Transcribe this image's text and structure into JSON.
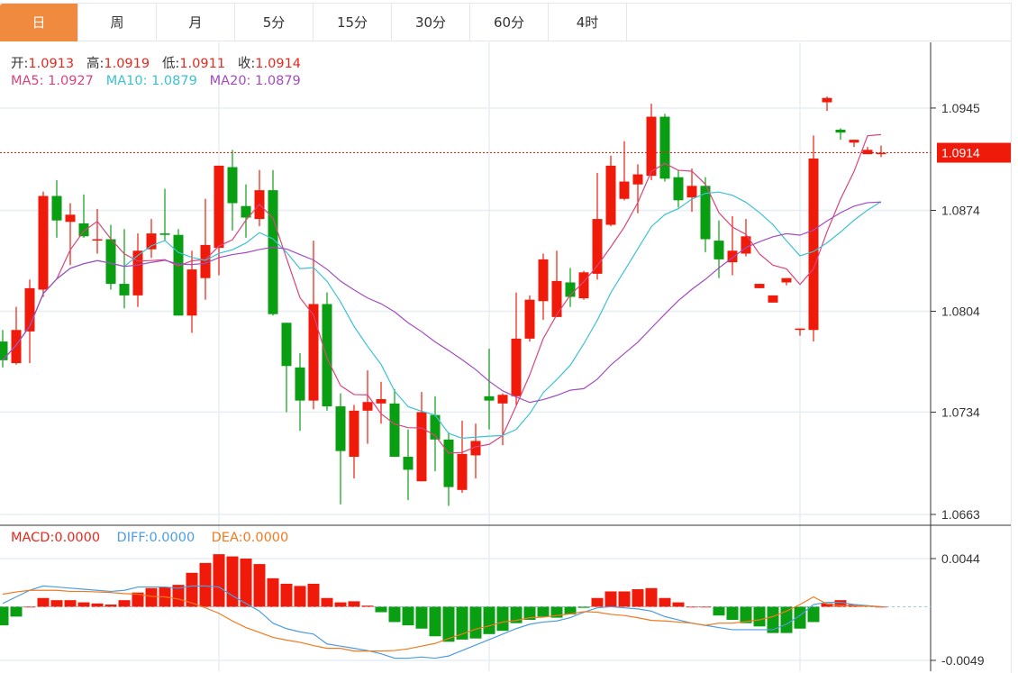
{
  "tabs": [
    {
      "label": "日",
      "active": true
    },
    {
      "label": "周",
      "active": false
    },
    {
      "label": "月",
      "active": false
    },
    {
      "label": "5分",
      "active": false
    },
    {
      "label": "15分",
      "active": false
    },
    {
      "label": "30分",
      "active": false
    },
    {
      "label": "60分",
      "active": false
    },
    {
      "label": "4时",
      "active": false
    }
  ],
  "legend": {
    "open_label": "开:",
    "open": "1.0913",
    "high_label": "高:",
    "high": "1.0919",
    "low_label": "低:",
    "low": "1.0911",
    "close_label": "收:",
    "close": "1.0914",
    "ma5": "MA5: 1.0927",
    "ma10": "MA10: 1.0879",
    "ma20": "MA20: 1.0879",
    "macd_label": "MACD:",
    "macd": "0.0000",
    "diff_label": "DIFF:",
    "diff": "0.0000",
    "dea_label": "DEA:",
    "dea": "0.0000"
  },
  "colors": {
    "up": "#f01a0a",
    "down": "#0a9e12",
    "ma5": "#d8457c",
    "ma10": "#3cc2d2",
    "ma20": "#a24cc0",
    "diff": "#4d9de0",
    "dea": "#f07a1e",
    "grid": "#e6edf3"
  },
  "chart_data": {
    "type": "candlestick",
    "title": "",
    "price_axis": {
      "range": [
        1.06555,
        1.09906
      ],
      "ticks": [
        "1.0945",
        "1.0874",
        "1.0804",
        "1.0734",
        "1.0663"
      ]
    },
    "last_price": "1.0914",
    "candles": [
      [
        1.0783,
        1.0791,
        1.0765,
        1.077
      ],
      [
        1.0768,
        1.0807,
        1.0767,
        1.0791
      ],
      [
        1.079,
        1.0826,
        1.0768,
        1.082
      ],
      [
        1.0819,
        1.0887,
        1.0814,
        1.0884
      ],
      [
        1.0884,
        1.0895,
        1.0855,
        1.0867
      ],
      [
        1.0866,
        1.0879,
        1.0836,
        1.0871
      ],
      [
        1.0865,
        1.0885,
        1.0855,
        1.0856
      ],
      [
        1.0854,
        1.0875,
        1.0844,
        1.0854
      ],
      [
        1.0854,
        1.0864,
        1.0819,
        1.0823
      ],
      [
        1.0823,
        1.0861,
        1.0806,
        1.0815
      ],
      [
        1.0815,
        1.0858,
        1.0807,
        1.0846
      ],
      [
        1.0847,
        1.0868,
        1.0841,
        1.0858
      ],
      [
        1.0858,
        1.0889,
        1.0853,
        1.0857
      ],
      [
        1.0857,
        1.0861,
        1.0801,
        1.0801
      ],
      [
        1.0801,
        1.0846,
        1.0789,
        1.0833
      ],
      [
        1.0827,
        1.0882,
        1.0812,
        1.085
      ],
      [
        1.0848,
        1.0905,
        1.0829,
        1.0905
      ],
      [
        1.0904,
        1.0916,
        1.086,
        1.0879
      ],
      [
        1.0877,
        1.0892,
        1.0855,
        1.0869
      ],
      [
        1.0868,
        1.0902,
        1.0863,
        1.0888
      ],
      [
        1.0888,
        1.0902,
        1.0801,
        1.0802
      ],
      [
        1.0796,
        1.0796,
        1.0734,
        1.0766
      ],
      [
        1.0765,
        1.0775,
        1.0721,
        1.0742
      ],
      [
        1.0742,
        1.0853,
        1.0736,
        1.0809
      ],
      [
        1.0809,
        1.0817,
        1.0735,
        1.0738
      ],
      [
        1.0738,
        1.0747,
        1.067,
        1.0707
      ],
      [
        1.0703,
        1.0739,
        1.0688,
        1.0735
      ],
      [
        1.0735,
        1.0763,
        1.0712,
        1.0741
      ],
      [
        1.074,
        1.0755,
        1.0726,
        1.0743
      ],
      [
        1.074,
        1.075,
        1.0703,
        1.0703
      ],
      [
        1.0703,
        1.0722,
        1.0673,
        1.0694
      ],
      [
        1.0686,
        1.0748,
        1.0686,
        1.0734
      ],
      [
        1.0732,
        1.0745,
        1.0693,
        1.0715
      ],
      [
        1.0715,
        1.072,
        1.0669,
        1.0682
      ],
      [
        1.068,
        1.0728,
        1.0678,
        1.0705
      ],
      [
        1.0704,
        1.0726,
        1.0688,
        1.0714
      ],
      [
        1.0745,
        1.0778,
        1.0722,
        1.0742
      ],
      [
        1.074,
        1.0747,
        1.0711,
        1.0746
      ],
      [
        1.0745,
        1.0817,
        1.0739,
        1.0785
      ],
      [
        1.0785,
        1.0815,
        1.0783,
        1.0812
      ],
      [
        1.0811,
        1.0844,
        1.0798,
        1.084
      ],
      [
        1.08,
        1.0846,
        1.08,
        1.0825
      ],
      [
        1.0824,
        1.0834,
        1.0807,
        1.0814
      ],
      [
        1.0813,
        1.0832,
        1.0812,
        1.0831
      ],
      [
        1.083,
        1.09,
        1.0826,
        1.0868
      ],
      [
        1.0864,
        1.0912,
        1.0863,
        1.0905
      ],
      [
        1.0882,
        1.0922,
        1.0881,
        1.0894
      ],
      [
        1.0892,
        1.0906,
        1.0872,
        1.0899
      ],
      [
        1.0898,
        1.0948,
        1.0895,
        1.0939
      ],
      [
        1.0939,
        1.0941,
        1.0894,
        1.0896
      ],
      [
        1.0897,
        1.0902,
        1.0876,
        1.0881
      ],
      [
        1.0883,
        1.0903,
        1.0873,
        1.0891
      ],
      [
        1.0891,
        1.0897,
        1.0845,
        1.0854
      ],
      [
        1.0853,
        1.0867,
        1.0827,
        1.084
      ],
      [
        1.0838,
        1.087,
        1.0829,
        1.0846
      ],
      [
        1.0844,
        1.0868,
        1.0842,
        1.0856
      ],
      [
        1.082,
        1.0823,
        1.082,
        1.0823
      ],
      [
        1.081,
        1.0815,
        1.081,
        1.0815
      ],
      [
        1.0824,
        1.0827,
        1.0822,
        1.0827
      ],
      [
        1.0791,
        1.0792,
        1.0787,
        1.0792
      ],
      [
        1.0791,
        1.0926,
        1.0783,
        1.091
      ],
      [
        1.0949,
        1.0953,
        1.0943,
        1.0952
      ],
      [
        1.093,
        1.0931,
        1.0923,
        1.0928
      ],
      [
        1.0921,
        1.0923,
        1.0918,
        1.0923
      ],
      [
        1.0913,
        1.0918,
        1.0913,
        1.0916
      ],
      [
        1.0913,
        1.0919,
        1.0911,
        1.0914
      ]
    ],
    "candle_fields": [
      "open",
      "high",
      "low",
      "close"
    ],
    "ma_periods": [
      5,
      10,
      20
    ],
    "macd_axis": {
      "range": [
        -0.00589,
        0.00687
      ],
      "ticks": [
        "0.0044",
        "-0.0049"
      ]
    },
    "macd_hist": [
      -0.0017,
      -0.0009,
      0.0,
      0.0008,
      0.0006,
      0.0006,
      0.0004,
      0.0003,
      0.0002,
      0.0006,
      0.0013,
      0.0017,
      0.0018,
      0.002,
      0.0031,
      0.004,
      0.0048,
      0.0046,
      0.0044,
      0.0039,
      0.0026,
      0.0021,
      0.0019,
      0.0021,
      0.0008,
      0.0004,
      0.0005,
      0.0001,
      -0.0005,
      -0.0014,
      -0.0017,
      -0.002,
      -0.0027,
      -0.0032,
      -0.003,
      -0.0029,
      -0.0025,
      -0.0022,
      -0.0015,
      -0.0012,
      -0.0009,
      -0.001,
      -0.0007,
      -0.0001,
      0.0008,
      0.0014,
      0.0014,
      0.0016,
      0.0017,
      0.0008,
      0.0004,
      0.0,
      0.0,
      -0.0008,
      -0.0012,
      -0.0015,
      -0.0018,
      -0.0024,
      -0.0024,
      -0.002,
      -0.0014,
      0.0003,
      0.0006,
      0.0002,
      0.0001,
      0.0
    ],
    "diff": [
      0.0003,
      0.0009,
      0.0015,
      0.0019,
      0.0018,
      0.0017,
      0.0016,
      0.0015,
      0.0014,
      0.0015,
      0.0018,
      0.0018,
      0.0018,
      0.0017,
      0.0019,
      0.0019,
      0.0018,
      0.001,
      0.0003,
      -0.0004,
      -0.0015,
      -0.002,
      -0.0023,
      -0.0025,
      -0.0034,
      -0.0036,
      -0.0038,
      -0.004,
      -0.0043,
      -0.0047,
      -0.0047,
      -0.0046,
      -0.0047,
      -0.0045,
      -0.004,
      -0.0035,
      -0.003,
      -0.0025,
      -0.002,
      -0.0016,
      -0.0014,
      -0.0013,
      -0.001,
      -0.0005,
      -0.0001,
      0.0,
      -0.0001,
      -0.0002,
      -0.0004,
      -0.0009,
      -0.0012,
      -0.0015,
      -0.0017,
      -0.0019,
      -0.0021,
      -0.0021,
      -0.0021,
      -0.0021,
      -0.0016,
      -0.0008,
      0.0002,
      0.0004,
      0.0004,
      0.0002,
      0.0001,
      0.0
    ]
  }
}
